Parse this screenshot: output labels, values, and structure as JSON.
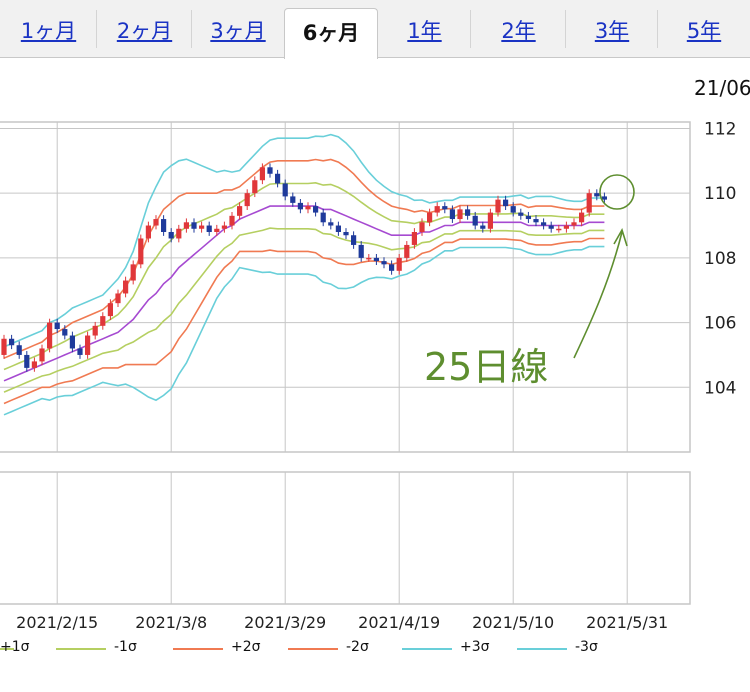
{
  "tabs": [
    {
      "label": "1ヶ月",
      "active": false
    },
    {
      "label": "2ヶ月",
      "active": false
    },
    {
      "label": "3ヶ月",
      "active": false
    },
    {
      "label": "6ヶ月",
      "active": true
    },
    {
      "label": "1年",
      "active": false
    },
    {
      "label": "2年",
      "active": false
    },
    {
      "label": "3年",
      "active": false
    },
    {
      "label": "5年",
      "active": false
    }
  ],
  "date_corner": "21/06",
  "annotation": "25日線",
  "legend": [
    {
      "label": "+1σ",
      "color": "#b5cf61"
    },
    {
      "label": "-1σ",
      "color": "#b5cf61"
    },
    {
      "label": "+2σ",
      "color": "#f07a52"
    },
    {
      "label": "-2σ",
      "color": "#f07a52"
    },
    {
      "label": "+3σ",
      "color": "#69cfd9"
    },
    {
      "label": "-3σ",
      "color": "#69cfd9"
    }
  ],
  "colors": {
    "up": "#e0373a",
    "down": "#1f3a9b",
    "ma": "#a64ad1",
    "sigma1": "#b5cf61",
    "sigma2": "#f07a52",
    "sigma3": "#69cfd9",
    "grid": "#c6c6c6",
    "annotation": "#5e8e2f"
  },
  "chart_data": {
    "type": "candlestick",
    "title": "",
    "ylim": [
      102.0,
      112.2
    ],
    "yticks": [
      104,
      106,
      108,
      110,
      112
    ],
    "x_tick_labels": [
      "2021/2/15",
      "2021/3/8",
      "2021/3/29",
      "2021/4/19",
      "2021/5/10",
      "2021/5/31"
    ],
    "x_tick_index": [
      7,
      22,
      37,
      52,
      67,
      82
    ],
    "candles_close": [
      105.5,
      105.3,
      105.0,
      104.6,
      104.8,
      105.2,
      106.0,
      105.8,
      105.6,
      105.2,
      105.0,
      105.6,
      105.9,
      106.2,
      106.6,
      106.9,
      107.3,
      107.8,
      108.6,
      109.0,
      109.2,
      108.8,
      108.6,
      108.9,
      109.1,
      108.9,
      109.0,
      108.8,
      108.9,
      109.0,
      109.3,
      109.6,
      110.0,
      110.4,
      110.8,
      110.6,
      110.3,
      109.9,
      109.7,
      109.5,
      109.6,
      109.4,
      109.1,
      109.0,
      108.8,
      108.7,
      108.4,
      108.0,
      108.0,
      107.9,
      107.8,
      107.6,
      108.0,
      108.4,
      108.8,
      109.1,
      109.4,
      109.6,
      109.5,
      109.2,
      109.5,
      109.3,
      109.0,
      108.9,
      109.4,
      109.8,
      109.6,
      109.4,
      109.3,
      109.2,
      109.1,
      109.0,
      108.9,
      108.9,
      109.0,
      109.1,
      109.4,
      110.0,
      109.9,
      109.8
    ],
    "candles_open": [
      105.0,
      105.5,
      105.3,
      105.0,
      104.6,
      104.8,
      105.2,
      106.0,
      105.8,
      105.6,
      105.2,
      105.0,
      105.6,
      105.9,
      106.2,
      106.6,
      106.9,
      107.3,
      107.8,
      108.6,
      109.0,
      109.2,
      108.8,
      108.6,
      108.9,
      109.1,
      108.9,
      109.0,
      108.8,
      108.9,
      109.0,
      109.3,
      109.6,
      110.0,
      110.4,
      110.8,
      110.6,
      110.3,
      109.9,
      109.7,
      109.5,
      109.6,
      109.4,
      109.1,
      109.0,
      108.8,
      108.7,
      108.4,
      108.0,
      108.0,
      107.9,
      107.8,
      107.6,
      108.0,
      108.4,
      108.8,
      109.1,
      109.4,
      109.6,
      109.5,
      109.2,
      109.5,
      109.3,
      109.0,
      108.9,
      109.4,
      109.8,
      109.6,
      109.4,
      109.3,
      109.2,
      109.1,
      109.0,
      108.9,
      108.9,
      109.0,
      109.1,
      109.4,
      110.0,
      109.9
    ],
    "ma25": [
      104.2,
      104.3,
      104.4,
      104.5,
      104.6,
      104.7,
      104.8,
      104.9,
      105.0,
      105.1,
      105.2,
      105.3,
      105.4,
      105.5,
      105.6,
      105.7,
      105.9,
      106.1,
      106.4,
      106.7,
      106.9,
      107.2,
      107.4,
      107.7,
      107.9,
      108.1,
      108.3,
      108.5,
      108.7,
      108.9,
      109.0,
      109.2,
      109.3,
      109.4,
      109.5,
      109.6,
      109.6,
      109.6,
      109.6,
      109.6,
      109.6,
      109.6,
      109.5,
      109.5,
      109.4,
      109.3,
      109.2,
      109.1,
      109.0,
      108.9,
      108.8,
      108.7,
      108.7,
      108.7,
      108.7,
      108.8,
      108.8,
      108.9,
      109.0,
      109.0,
      109.1,
      109.1,
      109.1,
      109.1,
      109.1,
      109.1,
      109.1,
      109.1,
      109.1,
      109.0,
      109.0,
      109.0,
      109.0,
      109.0,
      109.0,
      109.0,
      109.0,
      109.1,
      109.1,
      109.1
    ],
    "sigma": [
      0.35,
      0.35,
      0.35,
      0.35,
      0.35,
      0.35,
      0.4,
      0.4,
      0.42,
      0.45,
      0.45,
      0.45,
      0.45,
      0.45,
      0.5,
      0.55,
      0.6,
      0.7,
      0.85,
      1.0,
      1.1,
      1.15,
      1.15,
      1.1,
      1.05,
      0.95,
      0.85,
      0.75,
      0.65,
      0.6,
      0.55,
      0.5,
      0.55,
      0.6,
      0.65,
      0.68,
      0.7,
      0.7,
      0.7,
      0.7,
      0.7,
      0.72,
      0.75,
      0.77,
      0.78,
      0.75,
      0.7,
      0.62,
      0.55,
      0.5,
      0.47,
      0.45,
      0.42,
      0.4,
      0.36,
      0.33,
      0.3,
      0.28,
      0.26,
      0.26,
      0.26,
      0.26,
      0.26,
      0.26,
      0.26,
      0.26,
      0.26,
      0.27,
      0.28,
      0.28,
      0.3,
      0.3,
      0.3,
      0.28,
      0.26,
      0.25,
      0.25,
      0.25,
      0.25,
      0.25
    ]
  }
}
